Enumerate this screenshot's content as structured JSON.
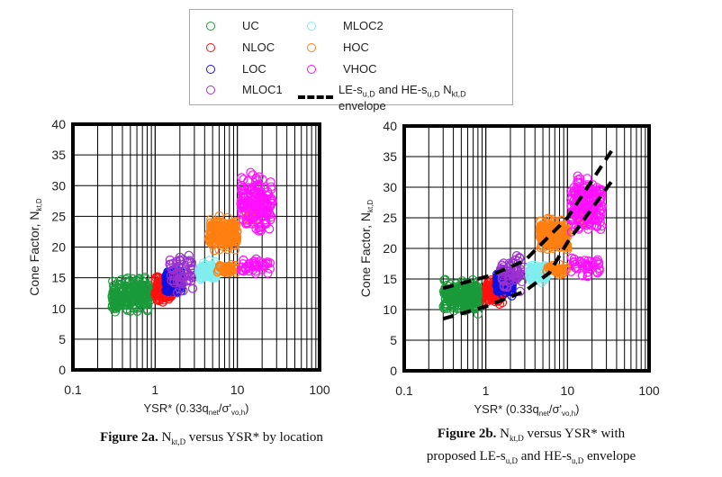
{
  "legend": {
    "items": [
      {
        "label": "UC",
        "color": "#1a9a3a"
      },
      {
        "label": "NLOC",
        "color": "#ff1010"
      },
      {
        "label": "LOC",
        "color": "#1010e0"
      },
      {
        "label": "MLOC1",
        "color": "#9a30d0"
      },
      {
        "label": "MLOC2",
        "color": "#80eeee"
      },
      {
        "label": "HOC",
        "color": "#ff7f10"
      },
      {
        "label": "VHOC",
        "color": "#ff10ff"
      }
    ],
    "envelope_label_prefix": "LE-s",
    "envelope_label_sub1": "u,D",
    "envelope_label_mid": " and HE-s",
    "envelope_label_sub2": "u,D",
    "envelope_label_n": " N",
    "envelope_label_sub3": "kt,D",
    "envelope_label_suffix": " envelope"
  },
  "captions": {
    "a_bold": "Figure 2a.",
    "a_text1": " N",
    "a_sub": "kt,D",
    "a_text2": " versus YSR* by location",
    "b_bold": "Figure 2b.",
    "b_text1": " N",
    "b_sub": "kt,D",
    "b_text2": " versus YSR* with",
    "b_line2_pre": "proposed LE-s",
    "b_line2_sub1": "u,D",
    "b_line2_mid": " and HE-s",
    "b_line2_sub2": "u,D",
    "b_line2_post": " envelope"
  },
  "chart_data": [
    {
      "type": "scatter",
      "title": "Figure 2a",
      "xlabel": "YSR* (0.33q_net/σ'_vo,h)",
      "ylabel": "Cone Factor, N_kt,D",
      "xscale": "log",
      "xlim": [
        0.1,
        100
      ],
      "ylim": [
        0,
        40
      ],
      "xticks": [
        "0.1",
        "1",
        "10",
        "100"
      ],
      "yticks": [
        "0",
        "5",
        "10",
        "15",
        "20",
        "25",
        "30",
        "35",
        "40"
      ],
      "grid": true,
      "series": [
        {
          "name": "UC",
          "clusters": [
            {
              "x": [
                0.3,
                0.85
              ],
              "y": [
                9,
                15.5
              ],
              "n": 260
            }
          ]
        },
        {
          "name": "NLOC",
          "clusters": [
            {
              "x": [
                1.0,
                1.6
              ],
              "y": [
                10.5,
                15.5
              ],
              "n": 160
            }
          ]
        },
        {
          "name": "LOC",
          "clusters": [
            {
              "x": [
                1.35,
                2.1
              ],
              "y": [
                12,
                17
              ],
              "n": 160
            }
          ]
        },
        {
          "name": "MLOC1",
          "clusters": [
            {
              "x": [
                1.5,
                3.0
              ],
              "y": [
                11.5,
                20
              ],
              "n": 60
            }
          ]
        },
        {
          "name": "MLOC2",
          "clusters": [
            {
              "x": [
                3.4,
                5.5
              ],
              "y": [
                14,
                18
              ],
              "n": 90
            }
          ]
        },
        {
          "name": "HOC",
          "clusters": [
            {
              "x": [
                4.5,
                10
              ],
              "y": [
                19,
                25.5
              ],
              "n": 200
            },
            {
              "x": [
                5.5,
                10
              ],
              "y": [
                15.5,
                17.5
              ],
              "n": 40
            },
            {
              "x": [
                13,
                17
              ],
              "y": [
                23,
                28
              ],
              "n": 40
            }
          ]
        },
        {
          "name": "VHOC",
          "clusters": [
            {
              "x": [
                11,
                27
              ],
              "y": [
                21,
                33
              ],
              "n": 180
            },
            {
              "x": [
                11,
                25
              ],
              "y": [
                15,
                19
              ],
              "n": 40
            }
          ]
        }
      ]
    },
    {
      "type": "scatter",
      "title": "Figure 2b",
      "xlabel": "YSR* (0.33q_net/σ'_vo,h)",
      "ylabel": "Cone Factor, N_kt,D",
      "xscale": "log",
      "xlim": [
        0.1,
        100
      ],
      "ylim": [
        0,
        40
      ],
      "xticks": [
        "0.1",
        "1",
        "10",
        "100"
      ],
      "yticks": [
        "0",
        "5",
        "10",
        "15",
        "20",
        "25",
        "30",
        "35",
        "40"
      ],
      "grid": true,
      "same_series_as": "Figure 2a",
      "envelope": {
        "upper": [
          [
            0.3,
            13.5
          ],
          [
            1.1,
            15.5
          ],
          [
            3,
            18
          ],
          [
            10,
            25
          ],
          [
            35,
            36
          ]
        ],
        "lower": [
          [
            0.3,
            8.5
          ],
          [
            1,
            10.5
          ],
          [
            3,
            13
          ],
          [
            6,
            16
          ],
          [
            10,
            21
          ],
          [
            35,
            31
          ]
        ]
      }
    }
  ]
}
